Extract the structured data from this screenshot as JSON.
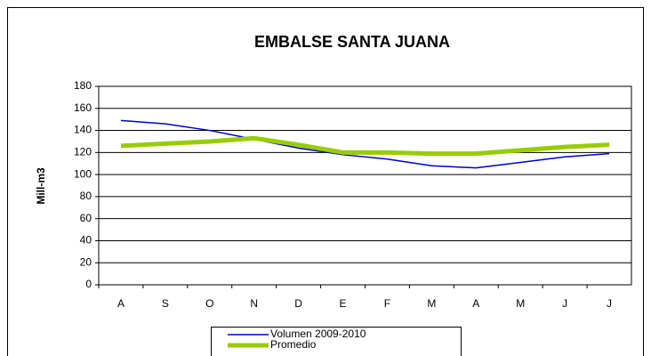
{
  "chart_data": {
    "type": "line",
    "title": "EMBALSE SANTA JUANA",
    "y_label": "Mill-m3",
    "categories": [
      "A",
      "S",
      "O",
      "N",
      "D",
      "E",
      "F",
      "M",
      "A",
      "M",
      "J",
      "J"
    ],
    "series": [
      {
        "name": "Volumen  2009-2010",
        "color": "#0000cc",
        "width": 1.5,
        "values": [
          149,
          146,
          140,
          132,
          124,
          118,
          114,
          108,
          106,
          111,
          116,
          119
        ]
      },
      {
        "name": "Promedio",
        "color": "#99cc00",
        "width": 5,
        "values": [
          126,
          128,
          130,
          133,
          127,
          120,
          120,
          119,
          119,
          122,
          125,
          127
        ]
      }
    ],
    "ylim": [
      0,
      180
    ],
    "yticks": [
      0,
      20,
      40,
      60,
      80,
      100,
      120,
      140,
      160,
      180
    ],
    "grid": true,
    "legend": "bottom"
  }
}
